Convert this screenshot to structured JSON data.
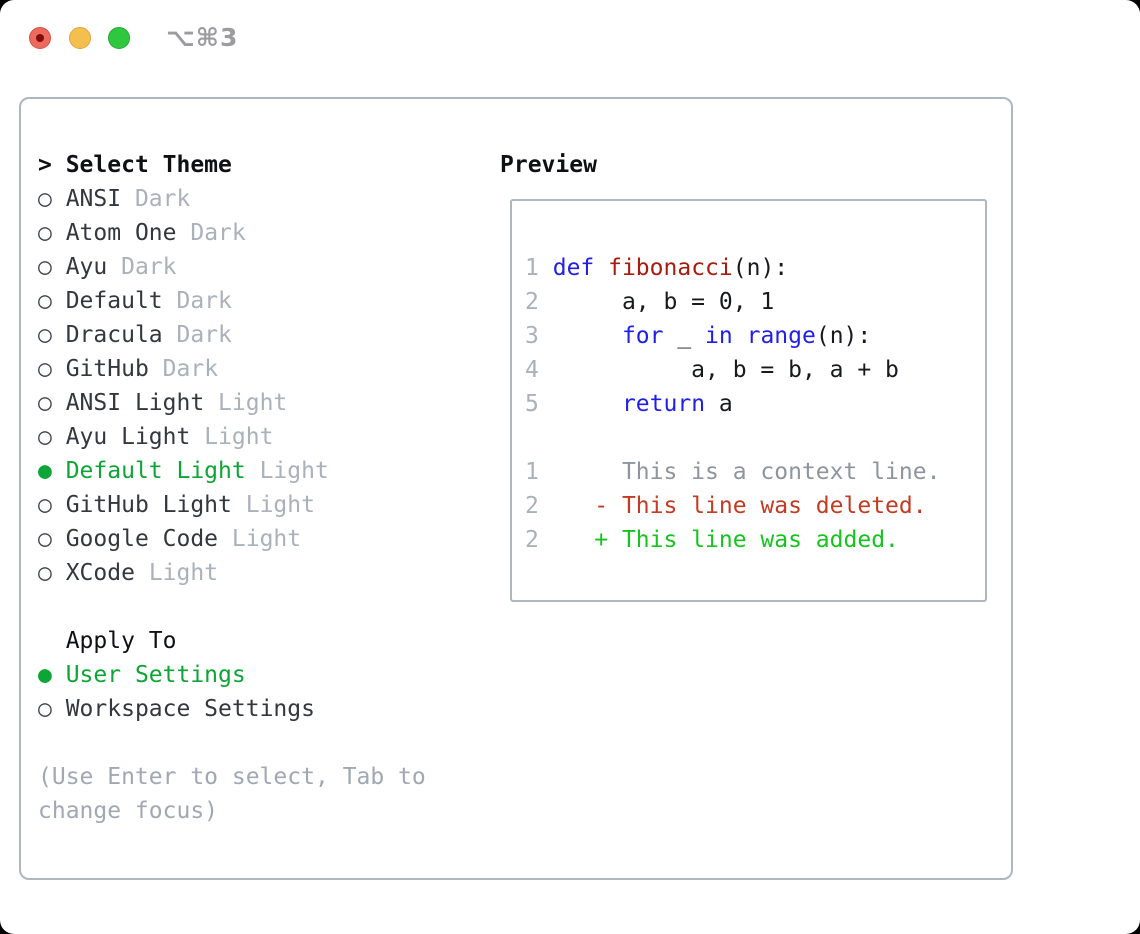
{
  "window": {
    "title": "⌥⌘3",
    "traffic_lights": [
      {
        "name": "close",
        "color": "#ed6a5e",
        "has_dot": true
      },
      {
        "name": "minimize",
        "color": "#f5bf4f",
        "has_dot": false
      },
      {
        "name": "zoom",
        "color": "#30c740",
        "has_dot": false
      }
    ]
  },
  "theme_picker": {
    "prompt_marker": "> ",
    "title": "Select Theme",
    "marker_unselected": "○ ",
    "marker_selected": "● ",
    "themes": [
      {
        "name": "ANSI",
        "variant": "Dark",
        "selected": false
      },
      {
        "name": "Atom One",
        "variant": "Dark",
        "selected": false
      },
      {
        "name": "Ayu",
        "variant": "Dark",
        "selected": false
      },
      {
        "name": "Default",
        "variant": "Dark",
        "selected": false
      },
      {
        "name": "Dracula",
        "variant": "Dark",
        "selected": false
      },
      {
        "name": "GitHub",
        "variant": "Dark",
        "selected": false
      },
      {
        "name": "ANSI Light",
        "variant": "Light",
        "selected": false
      },
      {
        "name": "Ayu Light",
        "variant": "Light",
        "selected": false
      },
      {
        "name": "Default Light",
        "variant": "Light",
        "selected": true
      },
      {
        "name": "GitHub Light",
        "variant": "Light",
        "selected": false
      },
      {
        "name": "Google Code",
        "variant": "Light",
        "selected": false
      },
      {
        "name": "XCode",
        "variant": "Light",
        "selected": false
      }
    ],
    "apply_to": {
      "label": "Apply To",
      "indent": "  ",
      "options": [
        {
          "name": "User Settings",
          "selected": true
        },
        {
          "name": "Workspace Settings",
          "selected": false
        }
      ]
    },
    "hint_lines": [
      "(Use Enter to select, Tab to",
      "change focus)"
    ]
  },
  "preview": {
    "title": "Preview",
    "code_lines": [
      [
        [
          "ln",
          "1"
        ],
        [
          "code",
          " "
        ],
        [
          "kw",
          "def"
        ],
        [
          "fn",
          " fibonacci"
        ],
        [
          "code",
          "(n):"
        ]
      ],
      [
        [
          "ln",
          "2"
        ],
        [
          "code",
          "      a, b = 0, 1"
        ]
      ],
      [
        [
          "ln",
          "3"
        ],
        [
          "code",
          "      "
        ],
        [
          "kw",
          "for"
        ],
        [
          "code",
          " _ "
        ],
        [
          "kw",
          "in"
        ],
        [
          "code",
          " "
        ],
        [
          "kw",
          "range"
        ],
        [
          "code",
          "(n):"
        ]
      ],
      [
        [
          "ln",
          "4"
        ],
        [
          "code",
          "           a, b = b, a + b"
        ]
      ],
      [
        [
          "ln",
          "5"
        ],
        [
          "code",
          "      "
        ],
        [
          "kw",
          "return"
        ],
        [
          "code",
          " a"
        ]
      ]
    ],
    "diff_lines": [
      [
        [
          "ln",
          "1"
        ],
        [
          "ctx",
          "      This is a context line."
        ]
      ],
      [
        [
          "ln",
          "2"
        ],
        [
          "del",
          "    - This line was deleted."
        ]
      ],
      [
        [
          "ln",
          "2"
        ],
        [
          "add",
          "    + This line was added."
        ]
      ]
    ]
  },
  "colors": {
    "border": "#aeb6c0",
    "green": "#0da535",
    "name": "#33373e",
    "muted": "#a9b1bb",
    "marker": "#3f444b",
    "hint": "#a0a8b4",
    "ln": "#a9b1bb",
    "kw": "#1f1fe8",
    "fn": "#a81c10",
    "code": "#17191e",
    "ctx": "#8e959e",
    "del": "#c23b22",
    "add": "#16c420",
    "title_gray": "#9b9ba1",
    "tl_red": "#ed6a5e",
    "tl_red_border": "#d55248",
    "tl_red_dot": "#7e0f08",
    "tl_yellow": "#f5bf4f",
    "tl_yellow_border": "#dba63e",
    "tl_green": "#30c740",
    "tl_green_border": "#24ab33"
  }
}
